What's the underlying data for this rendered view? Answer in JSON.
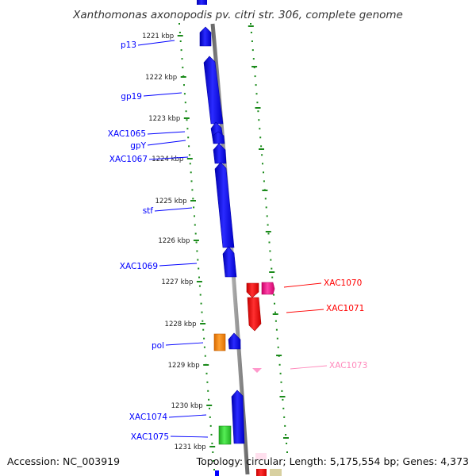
{
  "title": "Xanthomonas axonopodis pv. citri str. 306, complete genome",
  "footer": {
    "accession": "Accession: NC_003919",
    "stats": "Topology: circular; Length: 5,175,554 bp; Genes: 4,373"
  },
  "ticks": [
    "1221 kbp",
    "1222 kbp",
    "1223 kbp",
    "1224 kbp",
    "1225 kbp",
    "1226 kbp",
    "1227 kbp",
    "1228 kbp",
    "1229 kbp",
    "1230 kbp",
    "1231 kbp"
  ],
  "genes": [
    {
      "name": "p13",
      "color": "#0000ff",
      "side": "left"
    },
    {
      "name": "gp19",
      "color": "#0000ff",
      "side": "left"
    },
    {
      "name": "XAC1065",
      "color": "#0000ff",
      "side": "left"
    },
    {
      "name": "gpY",
      "color": "#0000ff",
      "side": "left"
    },
    {
      "name": "XAC1067",
      "color": "#0000ff",
      "side": "left"
    },
    {
      "name": "stf",
      "color": "#0000ff",
      "side": "left"
    },
    {
      "name": "XAC1069",
      "color": "#0000ff",
      "side": "left"
    },
    {
      "name": "pol",
      "color": "#0000ff",
      "side": "left"
    },
    {
      "name": "XAC1074",
      "color": "#0000ff",
      "side": "left"
    },
    {
      "name": "XAC1075",
      "color": "#0000ff",
      "side": "left"
    },
    {
      "name": "XAC1070",
      "color": "#ff0000",
      "side": "right"
    },
    {
      "name": "XAC1071",
      "color": "#ff0000",
      "side": "right"
    },
    {
      "name": "XAC1073",
      "color": "#ff88bb",
      "side": "right"
    }
  ],
  "colors": {
    "backbone": "#8c8c8c",
    "tick_dots": "#1a8a1a",
    "forward_gene": "#0000ff",
    "reverse_gene": "#ff0000",
    "orange_gene": "#ff8800",
    "green_gene": "#33cc33",
    "magenta_gene": "#ee1188",
    "pale_pink_gene": "#ff99cc"
  }
}
